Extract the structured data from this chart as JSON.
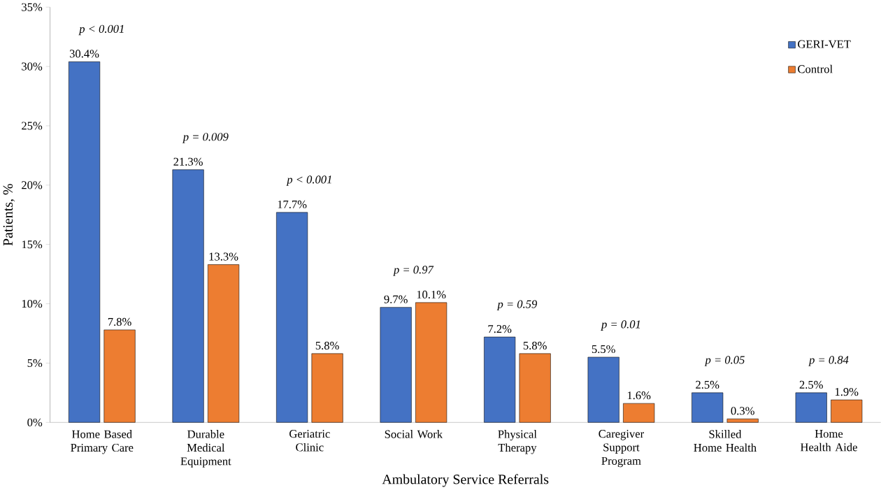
{
  "chart_data": {
    "type": "bar",
    "xlabel": "Ambulatory Service Referrals",
    "ylabel": "Patients, %",
    "categories": [
      "Home Based Primary Care",
      "Durable Medical Equipment",
      "Geriatric Clinic",
      "Social Work",
      "Physical Therapy",
      "Caregiver Support Program",
      "Skilled Home Health",
      "Home Health Aide"
    ],
    "series": [
      {
        "name": "GERI-VET",
        "color": "#4472c4",
        "values": [
          30.4,
          21.3,
          17.7,
          9.7,
          7.2,
          5.5,
          2.5,
          2.5
        ],
        "value_labels": [
          "30.4%",
          "21.3%",
          "17.7%",
          "9.7%",
          "7.2%",
          "5.5%",
          "2.5%",
          "2.5%"
        ]
      },
      {
        "name": "Control",
        "color": "#ed7d31",
        "values": [
          7.8,
          13.3,
          5.8,
          10.1,
          5.8,
          1.6,
          0.3,
          1.9
        ],
        "value_labels": [
          "7.8%",
          "13.3%",
          "5.8%",
          "10.1%",
          "5.8%",
          "1.6%",
          "0.3%",
          "1.9%"
        ]
      }
    ],
    "ylim": [
      0,
      35
    ],
    "yticks": [
      {
        "value": 0,
        "label": "0%"
      },
      {
        "value": 5,
        "label": "5%"
      },
      {
        "value": 10,
        "label": "10%"
      },
      {
        "value": 15,
        "label": "15%"
      },
      {
        "value": 20,
        "label": "20%"
      },
      {
        "value": 25,
        "label": "25%"
      },
      {
        "value": 30,
        "label": "30%"
      },
      {
        "value": 35,
        "label": "35%"
      }
    ],
    "annotations": [
      "p < 0.001",
      "p = 0.009",
      "p < 0.001",
      "p = 0.97",
      "p = 0.59",
      "p = 0.01",
      "p = 0.05",
      "p = 0.84"
    ],
    "grid": false,
    "legend": "top right"
  }
}
